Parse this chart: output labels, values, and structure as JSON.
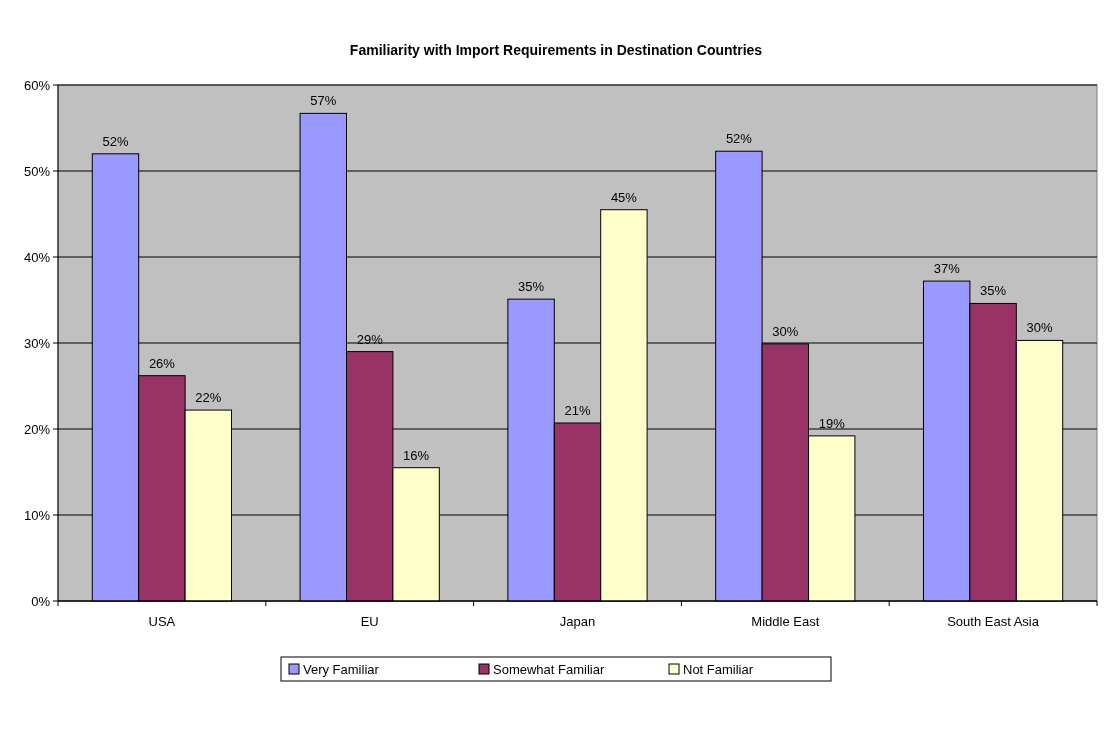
{
  "chart_data": {
    "type": "bar",
    "title": "Familiarity with Import Requirements in Destination Countries",
    "categories": [
      "USA",
      "EU",
      "Japan",
      "Middle East",
      "South East Asia"
    ],
    "series": [
      {
        "name": "Very Familiar",
        "color": "#9999ff",
        "values": [
          52.0,
          56.7,
          35.1,
          52.3,
          37.2
        ],
        "value_labels": [
          "52%",
          "57%",
          "35%",
          "52%",
          "37%"
        ]
      },
      {
        "name": "Somewhat Familiar",
        "color": "#993366",
        "values": [
          26.2,
          29.0,
          20.7,
          29.9,
          34.6
        ],
        "value_labels": [
          "26%",
          "29%",
          "21%",
          "30%",
          "35%"
        ]
      },
      {
        "name": "Not Familiar",
        "color": "#ffffcc",
        "values": [
          22.2,
          15.5,
          45.5,
          19.2,
          30.3
        ],
        "value_labels": [
          "22%",
          "16%",
          "45%",
          "19%",
          "30%"
        ]
      }
    ],
    "ylim": [
      0,
      60
    ],
    "yticks": [
      {
        "value": 0,
        "label": "0%"
      },
      {
        "value": 10,
        "label": "10%"
      },
      {
        "value": 20,
        "label": "20%"
      },
      {
        "value": 30,
        "label": "30%"
      },
      {
        "value": 40,
        "label": "40%"
      },
      {
        "value": 50,
        "label": "50%"
      },
      {
        "value": 60,
        "label": "60%"
      }
    ],
    "grid": "y",
    "legend": "bottom"
  }
}
